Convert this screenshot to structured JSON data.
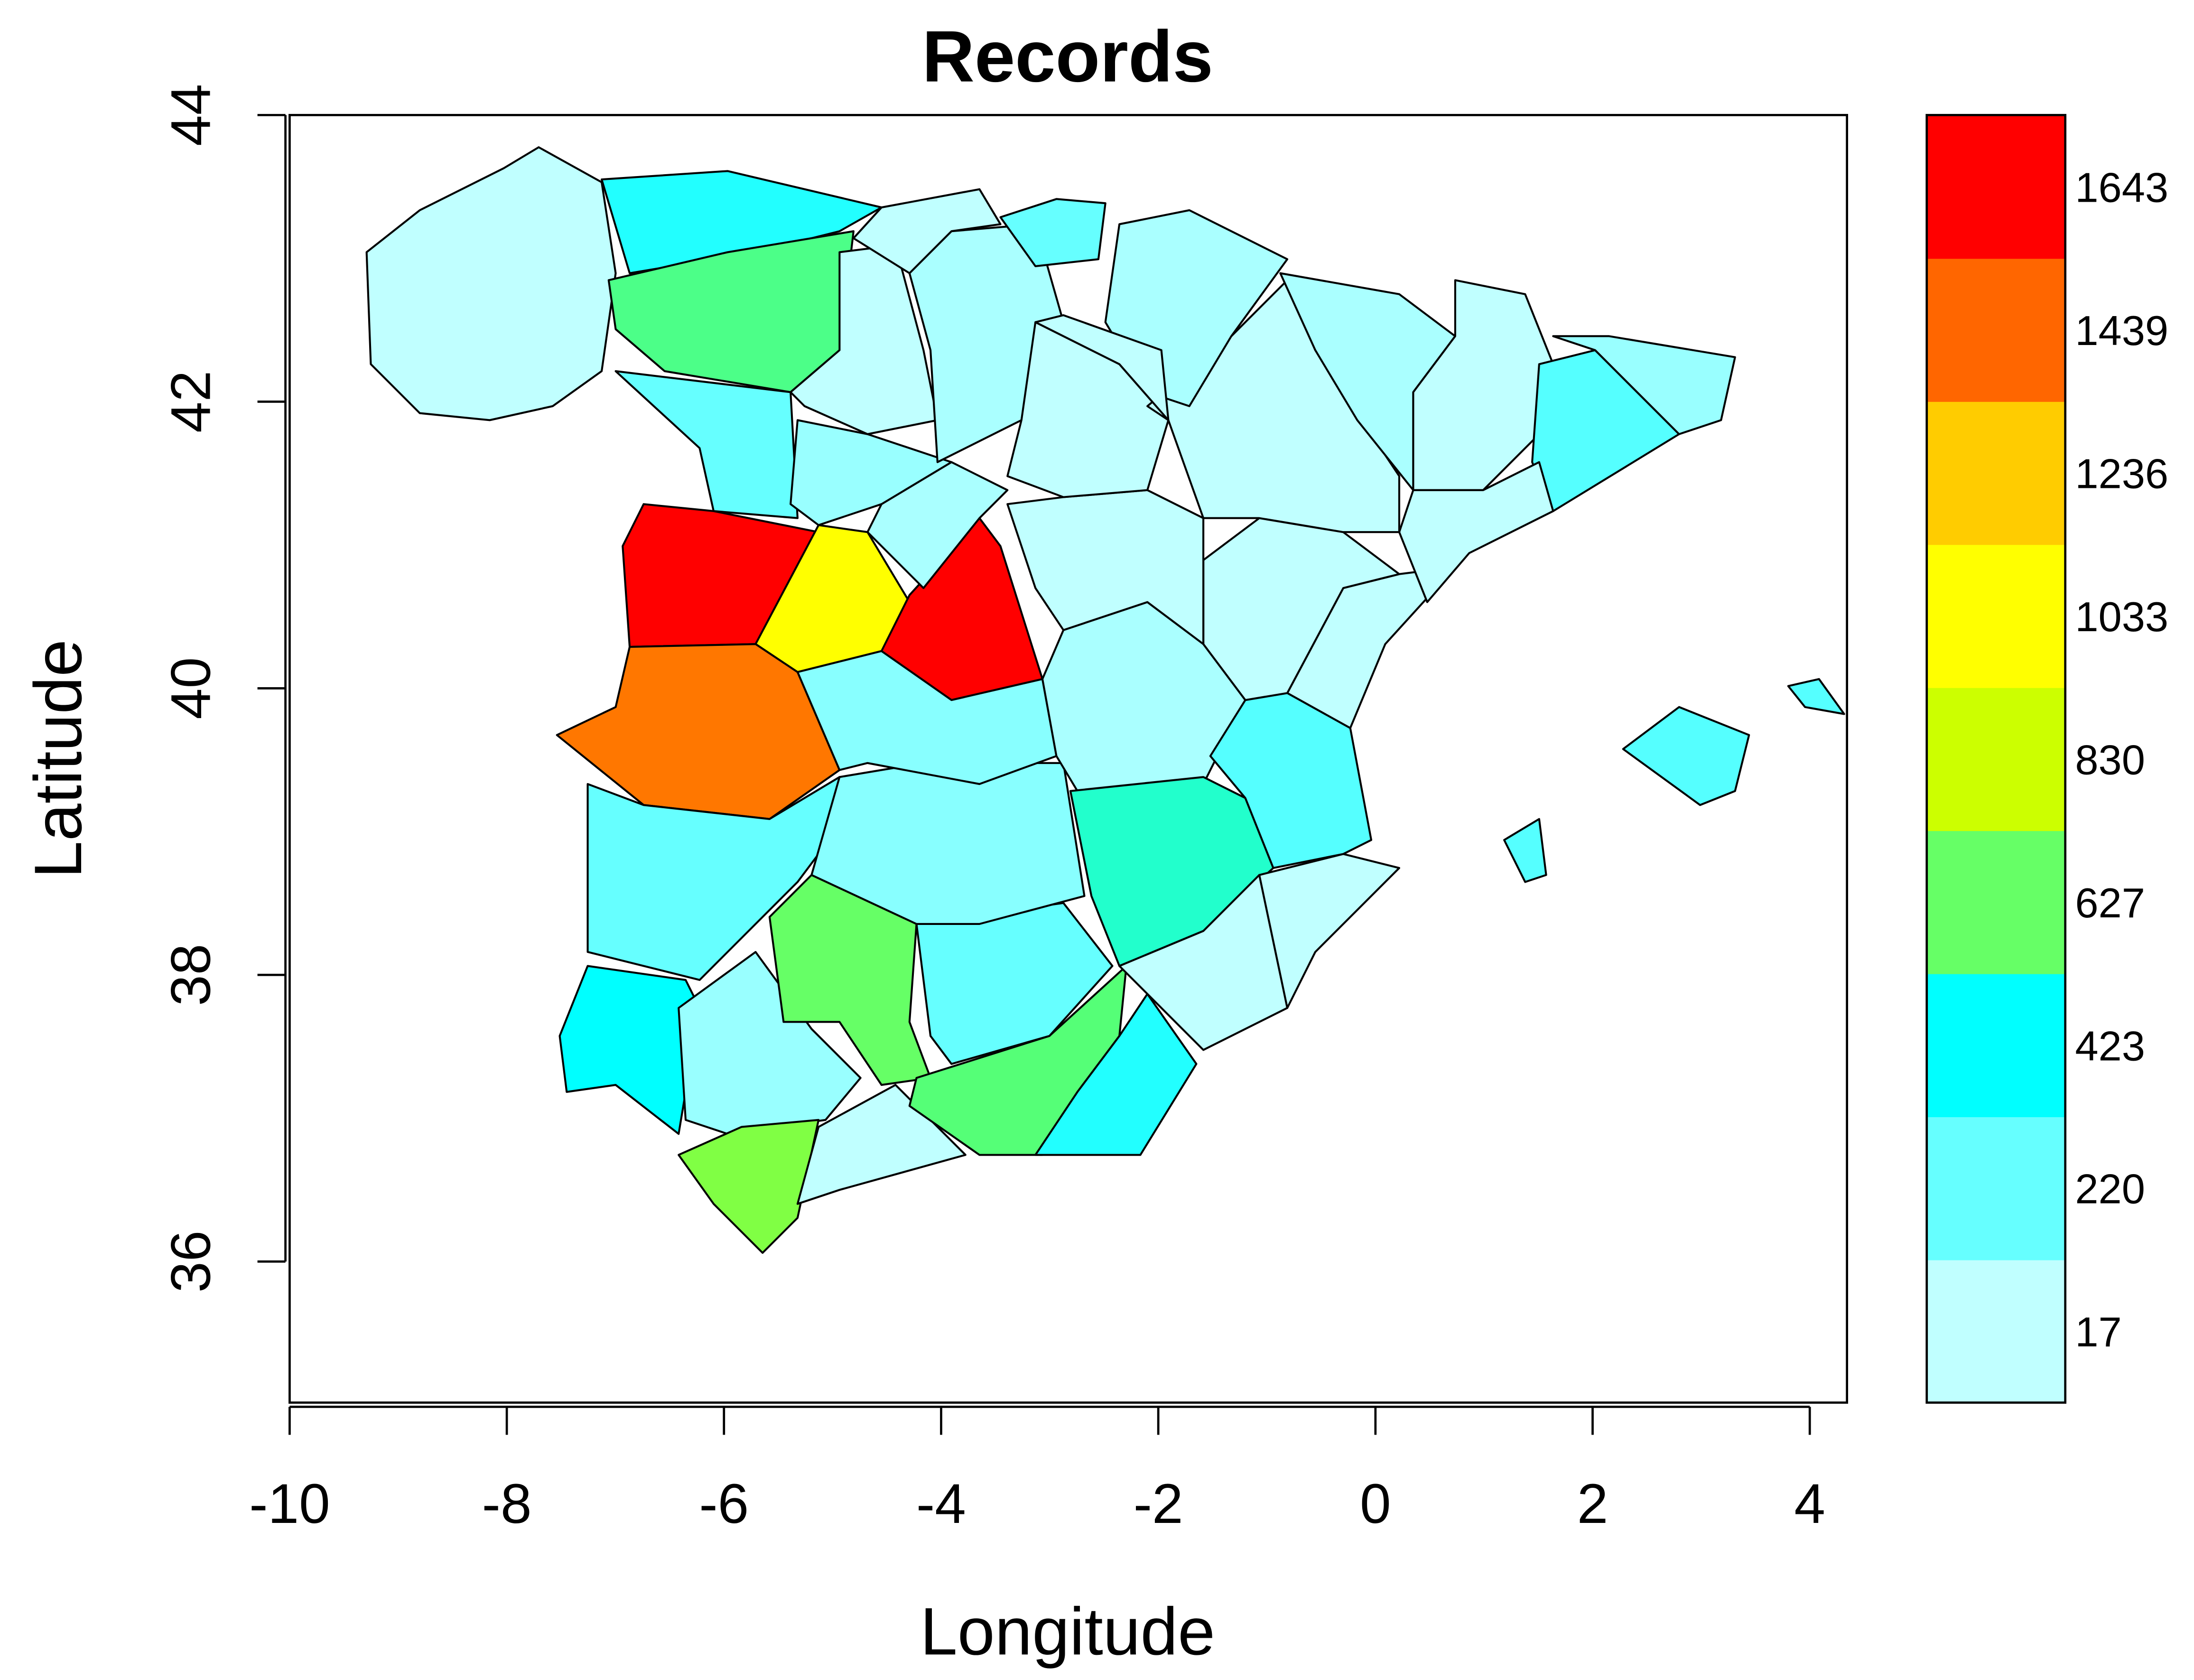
{
  "chart_data": {
    "type": "choropleth",
    "title": "Records",
    "xlabel": "Longitude",
    "ylabel": "Latitude",
    "xlim": [
      -10,
      4.35
    ],
    "ylim": [
      35,
      44
    ],
    "xticks": [
      "-10",
      "-8",
      "-6",
      "-4",
      "-2",
      "0",
      "2",
      "4"
    ],
    "yticks": [
      "36",
      "38",
      "40",
      "42",
      "44"
    ],
    "grid": false,
    "legend": {
      "placement": "right",
      "labels": [
        "17",
        "220",
        "423",
        "627",
        "830",
        "1033",
        "1236",
        "1439",
        "1643"
      ],
      "colors": [
        "#c0ffff",
        "#66ffff",
        "#00ffff",
        "#66ff66",
        "#ccff00",
        "#ffff00",
        "#ffcc00",
        "#ff6600",
        "#ff0000"
      ]
    },
    "regions": [
      {
        "fill": "#c0ffff"
      },
      {
        "fill": "#22ffff"
      },
      {
        "fill": "#4cff88"
      },
      {
        "fill": "#66ffff"
      },
      {
        "fill": "#ff0000"
      },
      {
        "fill": "#ffff00"
      },
      {
        "fill": "#ff0000"
      },
      {
        "fill": "#ff7700"
      },
      {
        "fill": "#66ffff"
      },
      {
        "fill": "#00ffff"
      },
      {
        "fill": "#99ffff"
      },
      {
        "fill": "#80ff44"
      },
      {
        "fill": "#66ff66"
      },
      {
        "fill": "#c0ffff"
      },
      {
        "fill": "#55ff77"
      },
      {
        "fill": "#22ffff"
      },
      {
        "fill": "#66ffff"
      },
      {
        "fill": "#88ffff"
      },
      {
        "fill": "#88ffff"
      },
      {
        "fill": "#aaffff"
      },
      {
        "fill": "#22ffcc"
      },
      {
        "fill": "#c0ffff"
      },
      {
        "fill": "#c0ffff"
      },
      {
        "fill": "#55ffff"
      },
      {
        "fill": "#c0ffff"
      },
      {
        "fill": "#c0ffff"
      },
      {
        "fill": "#c0ffff"
      },
      {
        "fill": "#aaffff"
      },
      {
        "fill": "#99ffff"
      },
      {
        "fill": "#c0ffff"
      },
      {
        "fill": "#aaffff"
      },
      {
        "fill": "#c0ffff"
      },
      {
        "fill": "#c0ffff"
      },
      {
        "fill": "#aaffff"
      },
      {
        "fill": "#c0ffff"
      },
      {
        "fill": "#55ffff"
      },
      {
        "fill": "#99ffff"
      },
      {
        "fill": "#c0ffff"
      },
      {
        "fill": "#aaffff"
      },
      {
        "fill": "#c0ffff"
      },
      {
        "fill": "#66ffff"
      },
      {
        "fill": "#c0ffff"
      },
      {
        "fill": "#55ffff"
      },
      {
        "fill": "#55ffff"
      },
      {
        "fill": "#55ffff"
      }
    ]
  }
}
